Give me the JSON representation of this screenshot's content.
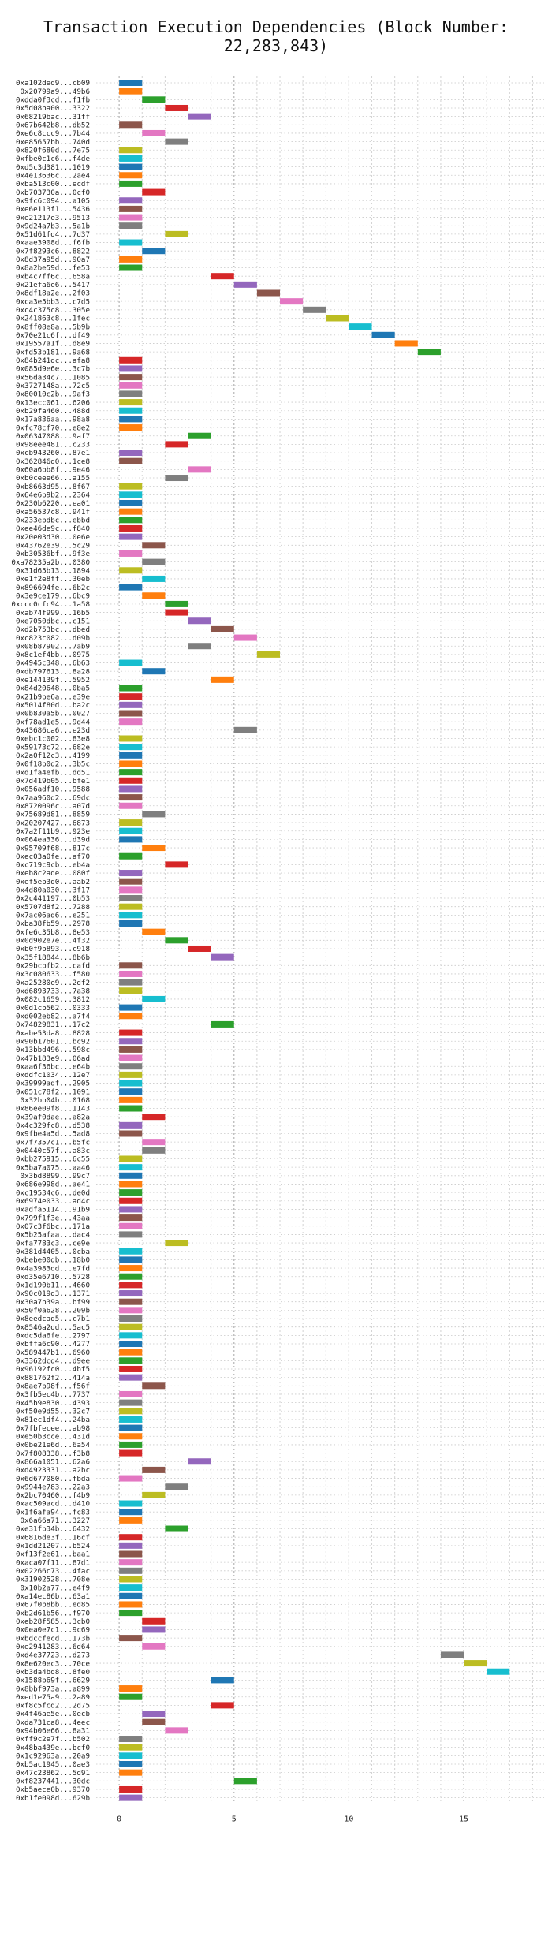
{
  "chart_data": {
    "type": "bar",
    "orientation": "horizontal",
    "title": "Transaction Execution Dependencies (Block Number: 22,283,843)",
    "xlabel": "",
    "ylabel": "",
    "xlim": [
      -1,
      18.5
    ],
    "x_ticks": [
      0,
      5,
      10,
      15
    ],
    "grid": true,
    "colors": [
      "#1f77b4",
      "#ff7f0e",
      "#2ca02c",
      "#d62728",
      "#9467bd",
      "#8c564b",
      "#e377c2",
      "#7f7f7f",
      "#bcbd22",
      "#17becf"
    ],
    "transactions": [
      {
        "label": "0xa102ded9...cb09",
        "start": 0
      },
      {
        "label": "0x20799a9...49b6",
        "start": 0
      },
      {
        "label": "0xdda0f3cd...f1fb",
        "start": 1
      },
      {
        "label": "0x5d08ba00...3322",
        "start": 2
      },
      {
        "label": "0x68219bac...31ff",
        "start": 3
      },
      {
        "label": "0x67b642b8...db52",
        "start": 0
      },
      {
        "label": "0xe6c8ccc9...7b44",
        "start": 1
      },
      {
        "label": "0xe85657bb...740d",
        "start": 2
      },
      {
        "label": "0x820f680d...7e75",
        "start": 0
      },
      {
        "label": "0xfbe0c1c6...f4de",
        "start": 0
      },
      {
        "label": "0xd5c3d381...1019",
        "start": 0
      },
      {
        "label": "0x4e13636c...2ae4",
        "start": 0
      },
      {
        "label": "0xba513c00...ecdf",
        "start": 0
      },
      {
        "label": "0xb703730a...0cf0",
        "start": 1
      },
      {
        "label": "0x9fc6c094...a105",
        "start": 0
      },
      {
        "label": "0xe6e113f1...5436",
        "start": 0
      },
      {
        "label": "0xe21217e3...9513",
        "start": 0
      },
      {
        "label": "0x9d24a7b3...5a1b",
        "start": 0
      },
      {
        "label": "0x51d61fd4...7d37",
        "start": 2
      },
      {
        "label": "0xaae3908d...f6fb",
        "start": 0
      },
      {
        "label": "0x7f8293c6...8822",
        "start": 1
      },
      {
        "label": "0x8d37a95d...90a7",
        "start": 0
      },
      {
        "label": "0x8a2be59d...fe53",
        "start": 0
      },
      {
        "label": "0xb4c7ff6c...658a",
        "start": 4
      },
      {
        "label": "0x21efa6e6...5417",
        "start": 5
      },
      {
        "label": "0x8df18a2e...2f03",
        "start": 6
      },
      {
        "label": "0xca3e5bb3...c7d5",
        "start": 7
      },
      {
        "label": "0xc4c375c8...305e",
        "start": 8
      },
      {
        "label": "0x241863c8...1fec",
        "start": 9
      },
      {
        "label": "0x8ff08e8a...5b9b",
        "start": 10
      },
      {
        "label": "0x70e21c6f...df49",
        "start": 11
      },
      {
        "label": "0x19557a1f...d8e9",
        "start": 12
      },
      {
        "label": "0xfd53b181...9a68",
        "start": 13
      },
      {
        "label": "0x84b241dc...afa8",
        "start": 0
      },
      {
        "label": "0x085d9e6e...3c7b",
        "start": 0
      },
      {
        "label": "0x56da34c7...1085",
        "start": 0
      },
      {
        "label": "0x3727148a...72c5",
        "start": 0
      },
      {
        "label": "0x80010c2b...9af3",
        "start": 0
      },
      {
        "label": "0x13ecc061...6206",
        "start": 0
      },
      {
        "label": "0xb29fa460...488d",
        "start": 0
      },
      {
        "label": "0x17a836aa...98a8",
        "start": 0
      },
      {
        "label": "0xfc78cf70...e8e2",
        "start": 0
      },
      {
        "label": "0x06347088...9af7",
        "start": 3
      },
      {
        "label": "0x98eee481...c233",
        "start": 2
      },
      {
        "label": "0xcb943260...87e1",
        "start": 0
      },
      {
        "label": "0x362846d0...1ce8",
        "start": 0
      },
      {
        "label": "0x60a6bb8f...9e46",
        "start": 3
      },
      {
        "label": "0xb0ceee66...a155",
        "start": 2
      },
      {
        "label": "0xb8663d95...8f67",
        "start": 0
      },
      {
        "label": "0x64e6b9b2...2364",
        "start": 0
      },
      {
        "label": "0x230b6220...ea01",
        "start": 0
      },
      {
        "label": "0xa56537c8...941f",
        "start": 0
      },
      {
        "label": "0x233ebdbc...ebbd",
        "start": 0
      },
      {
        "label": "0xee46de9c...f840",
        "start": 0
      },
      {
        "label": "0x20e03d30...0e6e",
        "start": 0
      },
      {
        "label": "0x43762e39...5c29",
        "start": 1
      },
      {
        "label": "0xb30536bf...9f3e",
        "start": 0
      },
      {
        "label": "0xa78235a2b...0380",
        "start": 1
      },
      {
        "label": "0x31d65b13...1894",
        "start": 0
      },
      {
        "label": "0xe1f2e8ff...30eb",
        "start": 1
      },
      {
        "label": "0x896694fe...6b2c",
        "start": 0
      },
      {
        "label": "0x3e9ce179...6bc9",
        "start": 1
      },
      {
        "label": "0xccc0cfc94...1a58",
        "start": 2
      },
      {
        "label": "0xab74f999...16b5",
        "start": 2
      },
      {
        "label": "0xe7050dbc...c151",
        "start": 3
      },
      {
        "label": "0xd2b753bc...dbed",
        "start": 4
      },
      {
        "label": "0xc823c082...d09b",
        "start": 5
      },
      {
        "label": "0x08b87902...7ab9",
        "start": 3
      },
      {
        "label": "0x8c1ef4bb...0975",
        "start": 6
      },
      {
        "label": "0x4945c348...6b63",
        "start": 0
      },
      {
        "label": "0xdb797613...8a28",
        "start": 1
      },
      {
        "label": "0xe144139f...5952",
        "start": 4
      },
      {
        "label": "0x84d20648...0ba5",
        "start": 0
      },
      {
        "label": "0x21b9be6a...e39e",
        "start": 0
      },
      {
        "label": "0x5014f80d...ba2c",
        "start": 0
      },
      {
        "label": "0x0b830a5b...0027",
        "start": 0
      },
      {
        "label": "0xf78ad1e5...9d44",
        "start": 0
      },
      {
        "label": "0x43686ca6...e23d",
        "start": 5
      },
      {
        "label": "0xebc1c002...83e8",
        "start": 0
      },
      {
        "label": "0x59173c72...682e",
        "start": 0
      },
      {
        "label": "0x2a0f12c3...4199",
        "start": 0
      },
      {
        "label": "0x0f18b0d2...3b5c",
        "start": 0
      },
      {
        "label": "0xd1fa4efb...dd51",
        "start": 0
      },
      {
        "label": "0x7d419b05...bfe1",
        "start": 0
      },
      {
        "label": "0x056adf10...9588",
        "start": 0
      },
      {
        "label": "0x7aa960d2...69dc",
        "start": 0
      },
      {
        "label": "0x8720096c...a07d",
        "start": 0
      },
      {
        "label": "0x75689d81...8859",
        "start": 1
      },
      {
        "label": "0x20207427...6873",
        "start": 0
      },
      {
        "label": "0x7a2f11b9...923e",
        "start": 0
      },
      {
        "label": "0x064ea336...d39d",
        "start": 0
      },
      {
        "label": "0x95709f68...817c",
        "start": 1
      },
      {
        "label": "0xec03a0fe...af70",
        "start": 0
      },
      {
        "label": "0xc719c9cb...eb4a",
        "start": 2
      },
      {
        "label": "0xeb8c2ade...080f",
        "start": 0
      },
      {
        "label": "0xef5eb3d0...aab2",
        "start": 0
      },
      {
        "label": "0x4d80a030...3f17",
        "start": 0
      },
      {
        "label": "0x2c441197...0b53",
        "start": 0
      },
      {
        "label": "0x5707d8f2...7288",
        "start": 0
      },
      {
        "label": "0x7ac06ad6...e251",
        "start": 0
      },
      {
        "label": "0xba38fb59...2978",
        "start": 0
      },
      {
        "label": "0xfe6c35b8...8e53",
        "start": 1
      },
      {
        "label": "0x0d902e7e...4f32",
        "start": 2
      },
      {
        "label": "0xb0f9b893...c918",
        "start": 3
      },
      {
        "label": "0x35f18844...8b6b",
        "start": 4
      },
      {
        "label": "0x29bcbfb2...cafd",
        "start": 0
      },
      {
        "label": "0x3c080633...f580",
        "start": 0
      },
      {
        "label": "0xa25280e9...2df2",
        "start": 0
      },
      {
        "label": "0xd6893733...7a38",
        "start": 0
      },
      {
        "label": "0x082c1659...3812",
        "start": 1
      },
      {
        "label": "0x0d1cb562...0333",
        "start": 0
      },
      {
        "label": "0xd002eb82...a7f4",
        "start": 0
      },
      {
        "label": "0x74829831...17c2",
        "start": 4
      },
      {
        "label": "0xabe53da8...8828",
        "start": 0
      },
      {
        "label": "0x90b17601...bc92",
        "start": 0
      },
      {
        "label": "0x13bbd496...598c",
        "start": 0
      },
      {
        "label": "0x47b183e9...06ad",
        "start": 0
      },
      {
        "label": "0xaa6f36bc...e64b",
        "start": 0
      },
      {
        "label": "0xddfc1034...12e7",
        "start": 0
      },
      {
        "label": "0x39999adf...2905",
        "start": 0
      },
      {
        "label": "0x051c78f2...1091",
        "start": 0
      },
      {
        "label": "0x32bb04b...0168",
        "start": 0
      },
      {
        "label": "0x86ee09f8...1143",
        "start": 0
      },
      {
        "label": "0x39af0dae...a82a",
        "start": 1
      },
      {
        "label": "0x4c329fc8...d538",
        "start": 0
      },
      {
        "label": "0x9fbe4a5d...5ad8",
        "start": 0
      },
      {
        "label": "0x7f7357c1...b5fc",
        "start": 1
      },
      {
        "label": "0x0440c57f...a83c",
        "start": 1
      },
      {
        "label": "0xbb275915...6c55",
        "start": 0
      },
      {
        "label": "0x5ba7a075...aa46",
        "start": 0
      },
      {
        "label": "0x3bd8899...99c7",
        "start": 0
      },
      {
        "label": "0x686e998d...ae41",
        "start": 0
      },
      {
        "label": "0xc19534c6...de0d",
        "start": 0
      },
      {
        "label": "0x6974e033...ad4c",
        "start": 0
      },
      {
        "label": "0xadfa5114...91b9",
        "start": 0
      },
      {
        "label": "0x799f1f3e...43aa",
        "start": 0
      },
      {
        "label": "0x07c3f6bc...171a",
        "start": 0
      },
      {
        "label": "0x5b25afaa...dac4",
        "start": 0
      },
      {
        "label": "0xfa7783c3...ce9e",
        "start": 2
      },
      {
        "label": "0x381d4405...0cba",
        "start": 0
      },
      {
        "label": "0xbebe00db...18b0",
        "start": 0
      },
      {
        "label": "0x4a3983dd...e7fd",
        "start": 0
      },
      {
        "label": "0xd35e6710...5728",
        "start": 0
      },
      {
        "label": "0x1d190b11...4660",
        "start": 0
      },
      {
        "label": "0x90c019d3...1371",
        "start": 0
      },
      {
        "label": "0x30a7b39a...bf99",
        "start": 0
      },
      {
        "label": "0x50f0a628...209b",
        "start": 0
      },
      {
        "label": "0x8eedcad5...c7b1",
        "start": 0
      },
      {
        "label": "0x8546a2dd...5ac5",
        "start": 0
      },
      {
        "label": "0xdc5da6fe...2797",
        "start": 0
      },
      {
        "label": "0xbffa6c90...4277",
        "start": 0
      },
      {
        "label": "0x589447b1...6960",
        "start": 0
      },
      {
        "label": "0x3362dcd4...d9ee",
        "start": 0
      },
      {
        "label": "0x96192fc0...4bf5",
        "start": 0
      },
      {
        "label": "0x881762f2...414a",
        "start": 0
      },
      {
        "label": "0x8ae7b98f...f56f",
        "start": 1
      },
      {
        "label": "0x3fb5ec4b...7737",
        "start": 0
      },
      {
        "label": "0x45b9e830...4393",
        "start": 0
      },
      {
        "label": "0xf50e9d55...32c7",
        "start": 0
      },
      {
        "label": "0x81ec1df4...24ba",
        "start": 0
      },
      {
        "label": "0x7fbfecee...ab98",
        "start": 0
      },
      {
        "label": "0xe50b3cce...431d",
        "start": 0
      },
      {
        "label": "0x0be21e6d...6a54",
        "start": 0
      },
      {
        "label": "0x7f808338...f3b8",
        "start": 0
      },
      {
        "label": "0x866a1051...62a6",
        "start": 3
      },
      {
        "label": "0xd4923331...a2bc",
        "start": 1
      },
      {
        "label": "0x6d677080...fbda",
        "start": 0
      },
      {
        "label": "0x9944e783...22a3",
        "start": 2
      },
      {
        "label": "0x2bc70460...f4b9",
        "start": 1
      },
      {
        "label": "0xac509acd...d410",
        "start": 0
      },
      {
        "label": "0x1f6afa94...fc83",
        "start": 0
      },
      {
        "label": "0x6a66a71...3227",
        "start": 0
      },
      {
        "label": "0xe31fb34b...6432",
        "start": 2
      },
      {
        "label": "0x6816de3f...16cf",
        "start": 0
      },
      {
        "label": "0x1dd21207...b524",
        "start": 0
      },
      {
        "label": "0xf13f2e61...baa1",
        "start": 0
      },
      {
        "label": "0xaca07f11...87d1",
        "start": 0
      },
      {
        "label": "0x02266c73...4fac",
        "start": 0
      },
      {
        "label": "0x31902528...708e",
        "start": 0
      },
      {
        "label": "0x10b2a77...e4f9",
        "start": 0
      },
      {
        "label": "0xa14ec86b...63a1",
        "start": 0
      },
      {
        "label": "0x67f0b8bb...ed85",
        "start": 0
      },
      {
        "label": "0xb2d61b56...f970",
        "start": 0
      },
      {
        "label": "0xeb28f585...3cb0",
        "start": 1
      },
      {
        "label": "0x0ea0e7c1...9c69",
        "start": 1
      },
      {
        "label": "0xbdccfecd...173b",
        "start": 0
      },
      {
        "label": "0xe2941283...6d64",
        "start": 1
      },
      {
        "label": "0xd4e37723...d273",
        "start": 14
      },
      {
        "label": "0x8e620ec3...70ce",
        "start": 15
      },
      {
        "label": "0xb3da4bd8...8fe0",
        "start": 16
      },
      {
        "label": "0x1588b69f...6629",
        "start": 4
      },
      {
        "label": "0x8bbf973a...a899",
        "start": 0
      },
      {
        "label": "0xed1e75a9...2a89",
        "start": 0
      },
      {
        "label": "0xf8c5fcd2...2d75",
        "start": 4
      },
      {
        "label": "0x4f46ae5e...0ecb",
        "start": 1
      },
      {
        "label": "0xda731ca8...4eec",
        "start": 1
      },
      {
        "label": "0x94b06e66...8a31",
        "start": 2
      },
      {
        "label": "0xff9c2e7f...b502",
        "start": 0
      },
      {
        "label": "0x48ba439e...bcf0",
        "start": 0
      },
      {
        "label": "0x1c92963a...20a9",
        "start": 0
      },
      {
        "label": "0xb5ac1945...0ae3",
        "start": 0
      },
      {
        "label": "0x47c23862...5d91",
        "start": 0
      },
      {
        "label": "0xf8237441...30dc",
        "start": 5
      },
      {
        "label": "0xb5aece0b...9370",
        "start": 0
      },
      {
        "label": "0xb1fe098d...629b",
        "start": 0
      }
    ]
  }
}
